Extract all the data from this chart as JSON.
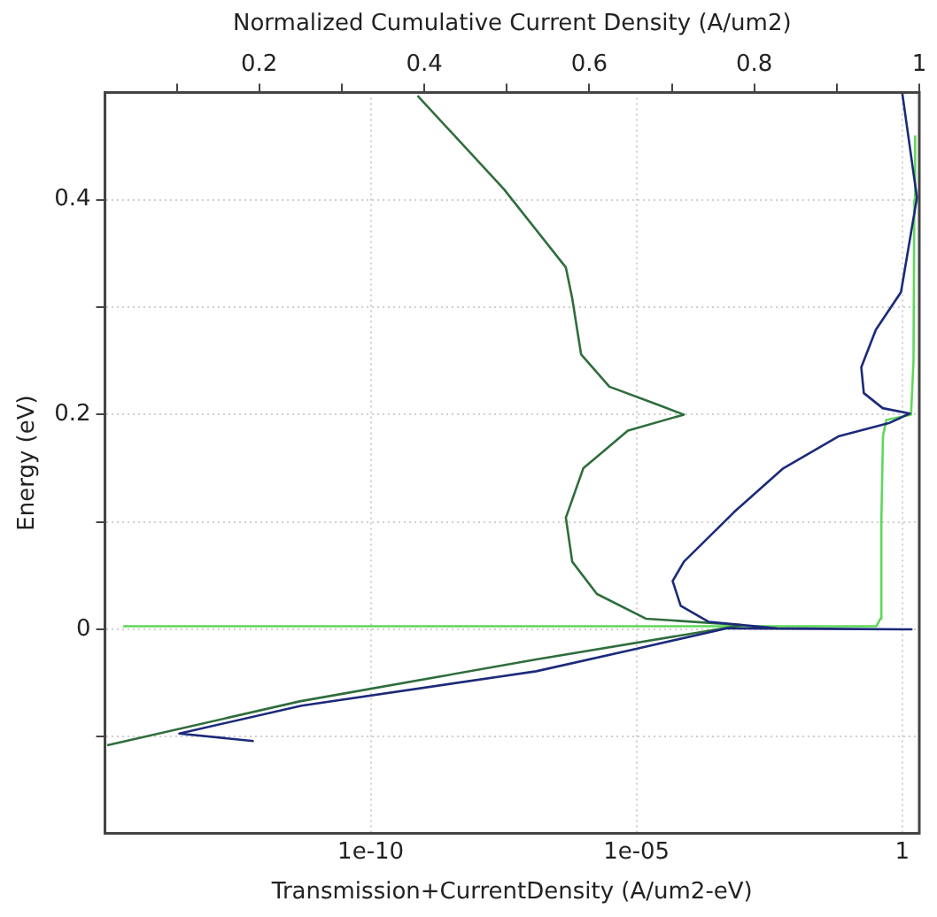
{
  "chart_data": {
    "type": "line",
    "xlabel": "Transmission+CurrentDensity (A/um2-eV)",
    "x2label": "Normalized Cumulative Current Density (A/um2)",
    "ylabel": "Energy (eV)",
    "log": "x",
    "grid": true,
    "xlim": [
      1e-15,
      2.1
    ],
    "xticks": [
      {
        "value": 1e-10,
        "label": "1e-10"
      },
      {
        "value": 1e-05,
        "label": "1e-05"
      },
      {
        "value": 1,
        "label": "1"
      }
    ],
    "x2lim": [
      0.013,
      1
    ],
    "x2ticks": [
      {
        "value": 0.1,
        "label": null
      },
      0.2,
      {
        "value": 0.3,
        "label": null
      },
      0.4,
      {
        "value": 0.5,
        "label": null
      },
      0.6,
      {
        "value": 0.7,
        "label": null
      },
      0.8,
      {
        "value": 0.9,
        "label": null
      },
      1
    ],
    "ylim": [
      -0.19,
      0.5
    ],
    "yticks": [
      {
        "value": -0.1,
        "label": null
      },
      0,
      {
        "value": 0.1,
        "label": null
      },
      0.2,
      {
        "value": 0.3,
        "label": null
      },
      0.4
    ],
    "series": [
      {
        "color": "#1c2a7a",
        "x": [
          6.3e-13,
          2.5e-14,
          5e-12,
          1.3e-07,
          1e-05,
          0.00051,
          1.5,
          0.0044,
          0.00023,
          6.8e-05,
          4.8e-05,
          7.8e-05,
          0.00068,
          0.0058,
          0.065,
          0.56,
          1.4,
          0.43,
          0.19,
          0.17,
          0.32,
          0.95,
          1.9,
          1.0
        ],
        "values": [
          -0.104,
          -0.097,
          -0.071,
          -0.039,
          -0.018,
          0.001,
          0,
          0.001,
          0.007,
          0.022,
          0.045,
          0.063,
          0.109,
          0.15,
          0.18,
          0.192,
          0.201,
          0.206,
          0.22,
          0.244,
          0.279,
          0.314,
          0.402,
          0.5
        ]
      },
      {
        "color": "#2f6e3c",
        "x": [
          1.1e-15,
          4.6e-12,
          1.3e-07,
          0.001,
          1.5e-05,
          1.8e-06,
          6.2e-07,
          4.7e-07,
          1e-06,
          6.9e-06,
          7.8e-05,
          2.6e-05,
          3.1e-06,
          9.1e-07,
          6.2e-07,
          4.7e-07,
          3.2e-08,
          7.6e-10
        ],
        "values": [
          -0.108,
          -0.067,
          -0.028,
          0.004,
          0.01,
          0.033,
          0.063,
          0.104,
          0.15,
          0.185,
          0.2,
          0.209,
          0.226,
          0.256,
          0.308,
          0.337,
          0.41,
          0.497
        ]
      },
      {
        "color": "#5fd85a",
        "axis": "x2",
        "x": [
          0.035,
          0.3,
          0.948,
          0.953,
          0.954,
          0.956,
          0.96,
          0.99,
          0.993,
          0.994,
          0.995
        ],
        "values": [
          0.003,
          0.003,
          0.003,
          0.01,
          0.1,
          0.18,
          0.195,
          0.2,
          0.25,
          0.4,
          0.46
        ]
      }
    ]
  }
}
